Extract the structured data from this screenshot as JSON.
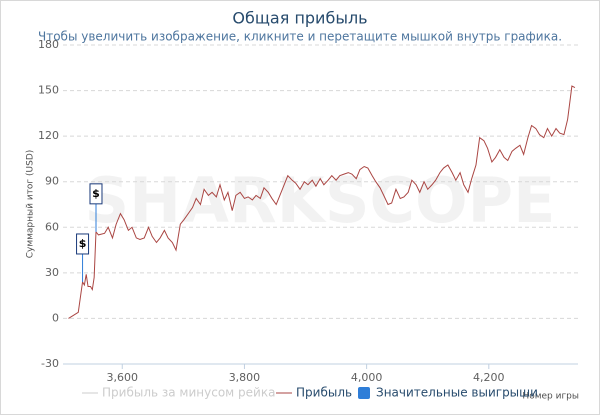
{
  "chart_data": {
    "type": "line",
    "title": "Общая прибыль",
    "subtitle": "Чтобы увеличить изображение, кликните и перетащите мышкой внутрь графика.",
    "watermark": "SHARKSCOPE",
    "y_label": "Суммарный итог (USD)",
    "x_label": "Номер игры",
    "xlim": [
      3503,
      4346
    ],
    "xticks": [
      {
        "value": 3600,
        "label": "3,600"
      },
      {
        "value": 3800,
        "label": "3,800"
      },
      {
        "value": 4000,
        "label": "4,000"
      },
      {
        "value": 4200,
        "label": "4,200"
      }
    ],
    "ylim": [
      -30,
      180
    ],
    "yticks": [
      -30,
      0,
      30,
      60,
      90,
      120,
      150,
      180
    ],
    "grid": true,
    "hidden_series": {
      "name": "Прибыль за минусом рейка",
      "color": "#cccccc"
    },
    "x": [
      3512,
      3528,
      3535,
      3538,
      3541,
      3544,
      3548,
      3551,
      3554,
      3557,
      3561,
      3571,
      3577,
      3584,
      3590,
      3597,
      3603,
      3610,
      3616,
      3623,
      3629,
      3636,
      3643,
      3649,
      3656,
      3662,
      3669,
      3675,
      3682,
      3688,
      3695,
      3701,
      3708,
      3715,
      3721,
      3728,
      3734,
      3741,
      3747,
      3754,
      3760,
      3767,
      3773,
      3780,
      3786,
      3793,
      3800,
      3806,
      3813,
      3819,
      3826,
      3832,
      3839,
      3845,
      3852,
      3858,
      3865,
      3871,
      3878,
      3884,
      3891,
      3898,
      3904,
      3911,
      3917,
      3924,
      3930,
      3937,
      3943,
      3950,
      3956,
      3963,
      3970,
      3976,
      3983,
      3989,
      3996,
      4002,
      4009,
      4015,
      4022,
      4028,
      4035,
      4041,
      4048,
      4055,
      4061,
      4068,
      4074,
      4081,
      4087,
      4094,
      4100,
      4107,
      4113,
      4120,
      4126,
      4133,
      4140,
      4146,
      4153,
      4159,
      4166,
      4172,
      4179,
      4185,
      4192,
      4198,
      4205,
      4211,
      4218,
      4225,
      4231,
      4238,
      4244,
      4251,
      4257,
      4264,
      4270,
      4277,
      4283,
      4290,
      4296,
      4303,
      4310,
      4316,
      4323,
      4329,
      4336,
      4341
    ],
    "series": [
      {
        "name": "Прибыль",
        "color": "#aa4643",
        "values": [
          0,
          4,
          24,
          22,
          29,
          21,
          21,
          19,
          27,
          57,
          55,
          56,
          60,
          53,
          62,
          69,
          65,
          58,
          60,
          53,
          52,
          53,
          60,
          54,
          50,
          53,
          58,
          53,
          50,
          45,
          62,
          65,
          69,
          73,
          79,
          75,
          85,
          81,
          83,
          80,
          88,
          78,
          83,
          71,
          81,
          83,
          79,
          80,
          78,
          81,
          79,
          86,
          83,
          79,
          75,
          81,
          88,
          94,
          91,
          89,
          85,
          90,
          88,
          91,
          87,
          92,
          88,
          91,
          94,
          91,
          94,
          95,
          96,
          95,
          92,
          98,
          100,
          99,
          94,
          90,
          86,
          81,
          75,
          76,
          85,
          79,
          80,
          83,
          91,
          88,
          83,
          90,
          85,
          88,
          91,
          96,
          99,
          101,
          96,
          91,
          96,
          88,
          83,
          92,
          101,
          119,
          117,
          112,
          103,
          106,
          111,
          106,
          104,
          110,
          112,
          114,
          108,
          119,
          127,
          125,
          121,
          119,
          125,
          120,
          125,
          122,
          121,
          131,
          153,
          152
        ]
      }
    ],
    "flags": {
      "name": "Значительные выигрыши",
      "color": "#2f7ed8",
      "points": [
        {
          "x": 3535,
          "label": "$"
        },
        {
          "x": 3557,
          "label": "$"
        }
      ]
    }
  }
}
